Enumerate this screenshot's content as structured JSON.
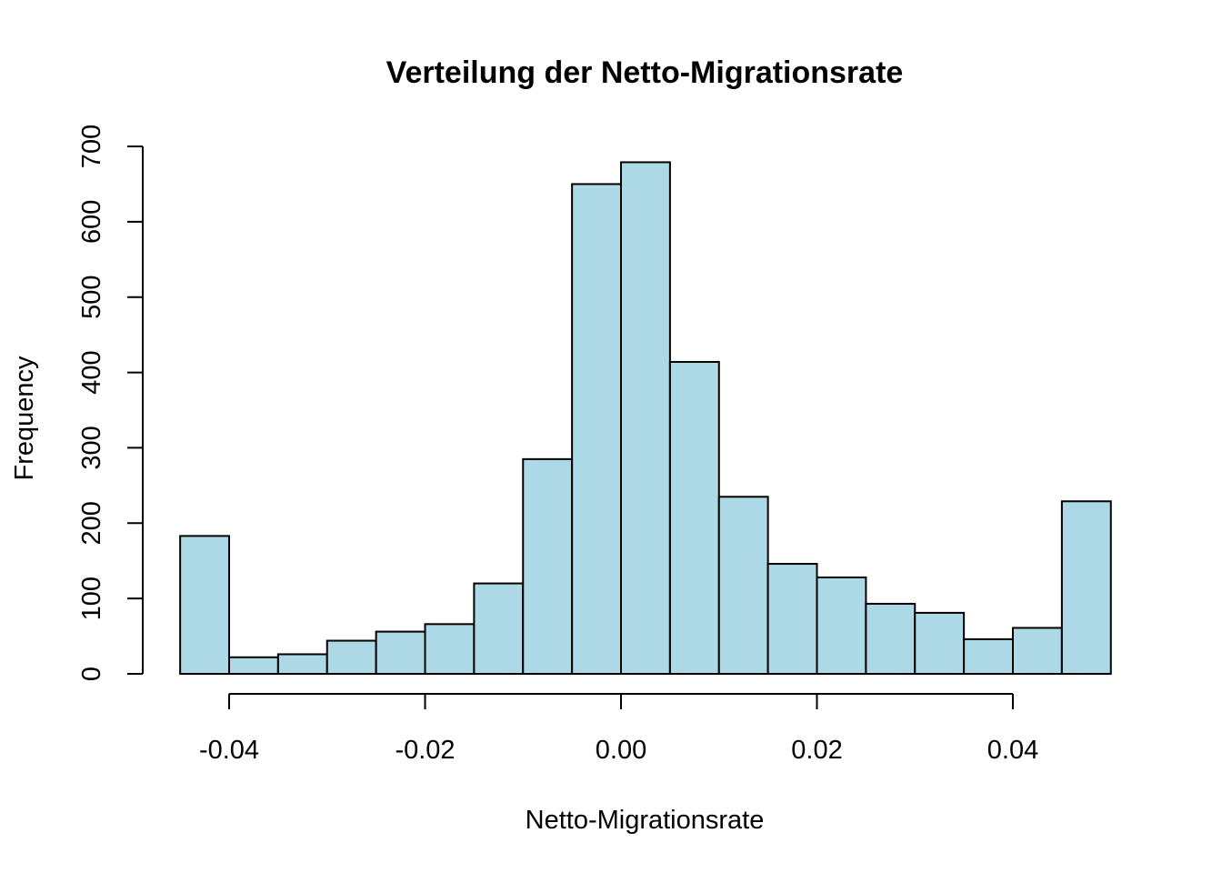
{
  "chart_data": {
    "type": "bar",
    "title": "Verteilung der Netto-Migrationsrate",
    "xlabel": "Netto-Migrationsrate",
    "ylabel": "Frequency",
    "bin_edges": [
      -0.045,
      -0.04,
      -0.035,
      -0.03,
      -0.025,
      -0.02,
      -0.015,
      -0.01,
      -0.005,
      0.0,
      0.005,
      0.01,
      0.015,
      0.02,
      0.025,
      0.03,
      0.035,
      0.04,
      0.045,
      0.05
    ],
    "values": [
      183,
      22,
      26,
      44,
      56,
      66,
      120,
      285,
      650,
      679,
      414,
      235,
      146,
      128,
      93,
      81,
      46,
      61,
      229
    ],
    "xlim": [
      -0.045,
      0.05
    ],
    "ylim": [
      0,
      700
    ],
    "x_ticks": [
      -0.04,
      -0.02,
      0.0,
      0.02,
      0.04
    ],
    "x_tick_labels": [
      "-0.04",
      "-0.02",
      "0.00",
      "0.02",
      "0.04"
    ],
    "y_ticks": [
      0,
      100,
      200,
      300,
      400,
      500,
      600,
      700
    ],
    "y_tick_labels": [
      "0",
      "100",
      "200",
      "300",
      "400",
      "500",
      "600",
      "700"
    ],
    "grid": false,
    "bar_color": "#add8e6",
    "edge_color": "#000000"
  }
}
